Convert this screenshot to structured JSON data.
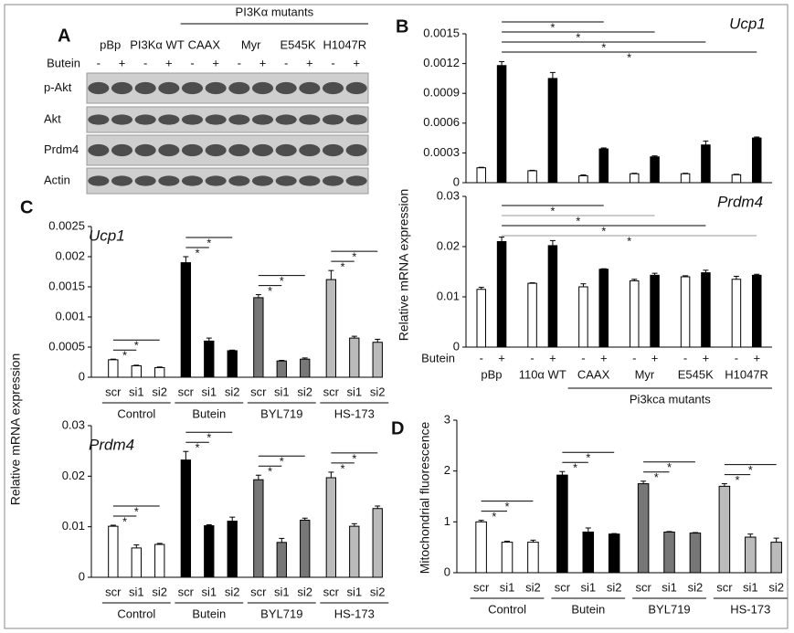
{
  "blot": {
    "panel": "A",
    "header": "PI3Kα mutants",
    "groups": [
      "pBp",
      "PI3Kα WT",
      "CAAX",
      "Myr",
      "E545K",
      "H1047R"
    ],
    "treatment": "Butein",
    "treatment_levels": [
      "-",
      "+"
    ],
    "rows": [
      "p-Akt",
      "Akt",
      "Prdm4",
      "Actin"
    ]
  },
  "chart_data": [
    {
      "type": "bar",
      "panel": "B",
      "title": "Ucp1",
      "ylabel": "Relative mRNA expression",
      "ylim": [
        0,
        0.0015
      ],
      "yticks": [
        0,
        0.0003,
        0.0006,
        0.0009,
        0.0012,
        0.0015
      ],
      "series": [
        {
          "color": "#ffffff",
          "values": [
            0.00015,
            0.00012,
            7e-05,
            9e-05,
            9e-05,
            8e-05
          ],
          "errors": [
            5e-06,
            5e-06,
            8e-06,
            5e-06,
            5e-06,
            5e-06
          ]
        },
        {
          "color": "#000000",
          "values": [
            0.00118,
            0.00105,
            0.00034,
            0.00026,
            0.00038,
            0.00045
          ],
          "errors": [
            4e-05,
            6e-05,
            1e-05,
            1e-05,
            4e-05,
            1e-05
          ]
        }
      ],
      "significance": [
        "*",
        "*",
        "*",
        "*"
      ]
    },
    {
      "type": "bar",
      "title": "Prdm4",
      "ylim": [
        0,
        0.03
      ],
      "yticks": [
        0,
        0.01,
        0.02,
        0.03
      ],
      "xlabel": "Butein",
      "categories": [
        "pBp",
        "110α WT",
        "CAAX",
        "Myr",
        "E545K",
        "H1047R"
      ],
      "group_label": "Pi3kca mutants",
      "series": [
        {
          "name": "-",
          "color": "#ffffff",
          "values": [
            0.0115,
            0.0127,
            0.012,
            0.0132,
            0.014,
            0.0135
          ],
          "errors": [
            0.0004,
            0.0001,
            0.0006,
            0.0003,
            0.0002,
            0.0006
          ]
        },
        {
          "name": "+",
          "color": "#000000",
          "values": [
            0.021,
            0.0202,
            0.0155,
            0.0143,
            0.0148,
            0.0143
          ],
          "errors": [
            0.0009,
            0.001,
            0.0001,
            0.0004,
            0.0005,
            0.0002
          ]
        }
      ],
      "significance": [
        "*",
        "*",
        "*",
        "*"
      ]
    },
    {
      "type": "bar",
      "panel": "C",
      "title": "Ucp1",
      "ylabel": "Relative mRNA expression",
      "ylim": [
        0,
        0.0025
      ],
      "yticks": [
        0,
        0.0005,
        0.001,
        0.0015,
        0.002,
        0.0025
      ],
      "subcategories": [
        "scr",
        "si1",
        "si2"
      ],
      "series": [
        {
          "name": "Control",
          "color": "#ffffff",
          "values": [
            0.00029,
            0.00019,
            0.00016
          ],
          "errors": [
            1e-05,
            1e-05,
            1e-05
          ]
        },
        {
          "name": "Butein",
          "color": "#000000",
          "values": [
            0.0019,
            0.0006,
            0.00044
          ],
          "errors": [
            0.0001,
            5e-05,
            1e-05
          ]
        },
        {
          "name": "BYL719",
          "color": "#777777",
          "values": [
            0.00132,
            0.00027,
            0.0003
          ],
          "errors": [
            5e-05,
            1e-05,
            2e-05
          ]
        },
        {
          "name": "HS-173",
          "color": "#bbbbbb",
          "values": [
            0.00162,
            0.00065,
            0.00058
          ],
          "errors": [
            0.00015,
            3e-05,
            5e-05
          ]
        }
      ],
      "significance": [
        "*",
        "*"
      ]
    },
    {
      "type": "bar",
      "title": "Prdm4",
      "ylim": [
        0,
        0.03
      ],
      "yticks": [
        0,
        0.01,
        0.02,
        0.03
      ],
      "subcategories": [
        "scr",
        "si1",
        "si2"
      ],
      "series": [
        {
          "name": "Control",
          "color": "#ffffff",
          "values": [
            0.0101,
            0.0058,
            0.0065
          ],
          "errors": [
            0.0002,
            0.0006,
            0.0002
          ]
        },
        {
          "name": "Butein",
          "color": "#000000",
          "values": [
            0.0232,
            0.0102,
            0.0111
          ],
          "errors": [
            0.0017,
            0.0002,
            0.0008
          ]
        },
        {
          "name": "BYL719",
          "color": "#777777",
          "values": [
            0.0193,
            0.0069,
            0.0113
          ],
          "errors": [
            0.0009,
            0.0008,
            0.0004
          ]
        },
        {
          "name": "HS-173",
          "color": "#bbbbbb",
          "values": [
            0.0197,
            0.0101,
            0.0136
          ],
          "errors": [
            0.0011,
            0.0005,
            0.0005
          ]
        }
      ],
      "significance": [
        "*",
        "*"
      ]
    },
    {
      "type": "bar",
      "panel": "D",
      "ylabel": "Mitochondrial fluorescence",
      "ylim": [
        0,
        3
      ],
      "yticks": [
        0,
        1,
        2,
        3
      ],
      "subcategories": [
        "scr",
        "si1",
        "si2"
      ],
      "series": [
        {
          "name": "Control",
          "color": "#ffffff",
          "values": [
            1.0,
            0.6,
            0.6
          ],
          "errors": [
            0.03,
            0.02,
            0.04
          ]
        },
        {
          "name": "Butein",
          "color": "#000000",
          "values": [
            1.92,
            0.8,
            0.76
          ],
          "errors": [
            0.07,
            0.08,
            0.01
          ]
        },
        {
          "name": "BYL719",
          "color": "#777777",
          "values": [
            1.75,
            0.8,
            0.78
          ],
          "errors": [
            0.05,
            0.01,
            0.01
          ]
        },
        {
          "name": "HS-173",
          "color": "#bbbbbb",
          "values": [
            1.7,
            0.7,
            0.6
          ],
          "errors": [
            0.05,
            0.06,
            0.08
          ]
        }
      ],
      "significance": [
        "*",
        "*"
      ]
    }
  ]
}
